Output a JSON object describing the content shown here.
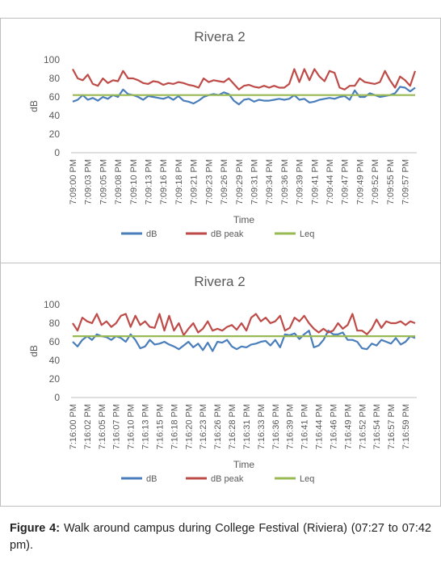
{
  "chart_data": [
    {
      "type": "line",
      "title": "Rivera 2",
      "x_label": "Time",
      "y_label": "dB",
      "categories": [
        "7:09:00 PM",
        null,
        null,
        "7:09:03 PM",
        null,
        null,
        "7:09:05 PM",
        null,
        null,
        "7:09:08 PM",
        null,
        null,
        "7:09:10 PM",
        null,
        null,
        "7:09:13 PM",
        null,
        null,
        "7:09:16 PM",
        null,
        null,
        "7:09:18 PM",
        null,
        null,
        "7:09:21 PM",
        null,
        null,
        "7:09:23 PM",
        null,
        null,
        "7:09:26 PM",
        null,
        null,
        "7:09:29 PM",
        null,
        null,
        "7:09:31 PM",
        null,
        null,
        "7:09:34 PM",
        null,
        null,
        "7:09:36 PM",
        null,
        null,
        "7:09:39 PM",
        null,
        null,
        "7:09:41 PM",
        null,
        null,
        "7:09:44 PM",
        null,
        null,
        "7:09:47 PM",
        null,
        null,
        "7:09:49 PM",
        null,
        null,
        "7:09:52 PM",
        null,
        null,
        "7:09:55 PM",
        null,
        null,
        "7:09:57 PM",
        null,
        null
      ],
      "series": [
        {
          "name": "dB",
          "color": "#4a7ebb",
          "values": [
            55,
            57,
            62,
            57,
            59,
            56,
            60,
            58,
            62,
            60,
            68,
            63,
            62,
            60,
            57,
            61,
            60,
            59,
            58,
            60,
            57,
            61,
            56,
            55,
            53,
            56,
            60,
            62,
            63,
            62,
            65,
            63,
            56,
            52,
            57,
            58,
            55,
            57,
            56,
            56,
            57,
            58,
            57,
            58,
            62,
            57,
            58,
            54,
            55,
            57,
            58,
            59,
            58,
            60,
            61,
            57,
            67,
            60,
            60,
            64,
            62,
            60,
            61,
            62,
            64,
            71,
            70,
            66,
            70
          ]
        },
        {
          "name": "dB peak",
          "color": "#be4b48",
          "values": [
            90,
            80,
            78,
            84,
            74,
            72,
            80,
            75,
            78,
            77,
            88,
            80,
            80,
            78,
            75,
            74,
            77,
            76,
            73,
            75,
            74,
            76,
            75,
            73,
            72,
            70,
            80,
            76,
            78,
            77,
            76,
            80,
            74,
            68,
            72,
            73,
            71,
            70,
            72,
            70,
            72,
            70,
            70,
            74,
            90,
            76,
            90,
            78,
            90,
            82,
            77,
            88,
            86,
            70,
            68,
            72,
            72,
            80,
            76,
            75,
            74,
            76,
            88,
            78,
            70,
            82,
            78,
            72,
            88
          ]
        },
        {
          "name": "Leq",
          "color": "#98b954",
          "values": [
            62,
            62,
            62,
            62,
            62,
            62,
            62,
            62,
            62,
            62,
            62,
            62,
            62,
            62,
            62,
            62,
            62,
            62,
            62,
            62,
            62,
            62,
            62,
            62,
            62,
            62,
            62,
            62,
            62,
            62,
            62,
            62,
            62,
            62,
            62,
            62,
            62,
            62,
            62,
            62,
            62,
            62,
            62,
            62,
            62,
            62,
            62,
            62,
            62,
            62,
            62,
            62,
            62,
            62,
            62,
            62,
            62,
            62,
            62,
            62,
            62,
            62,
            62,
            62,
            62,
            62,
            62,
            62,
            62
          ]
        }
      ],
      "ylim": [
        0,
        100
      ],
      "yticks": [
        0,
        20,
        40,
        60,
        80,
        100
      ],
      "legend": "bottom"
    },
    {
      "type": "line",
      "title": "Rivera 2",
      "x_label": "Time",
      "y_label": "dB",
      "categories": [
        "7:16:00 PM",
        null,
        null,
        "7:16:02 PM",
        null,
        null,
        "7:16:05 PM",
        null,
        null,
        "7:16:07 PM",
        null,
        null,
        "7:16:10 PM",
        null,
        null,
        "7:16:13 PM",
        null,
        null,
        "7:16:15 PM",
        null,
        null,
        "7:16:18 PM",
        null,
        null,
        "7:16:20 PM",
        null,
        null,
        "7:16:23 PM",
        null,
        null,
        "7:16:26 PM",
        null,
        null,
        "7:16:28 PM",
        null,
        null,
        "7:16:31 PM",
        null,
        null,
        "7:16:33 PM",
        null,
        null,
        "7:16:36 PM",
        null,
        null,
        "7:16:39 PM",
        null,
        null,
        "7:16:41 PM",
        null,
        null,
        "7:16:44 PM",
        null,
        null,
        "7:16:46 PM",
        null,
        null,
        "7:16:49 PM",
        null,
        null,
        "7:16:52 PM",
        null,
        null,
        "7:16:54 PM",
        null,
        null,
        "7:16:57 PM",
        null,
        null,
        "7:16:59 PM",
        null,
        null
      ],
      "series": [
        {
          "name": "dB",
          "color": "#4a7ebb",
          "values": [
            60,
            55,
            62,
            66,
            62,
            68,
            66,
            65,
            62,
            66,
            64,
            60,
            68,
            62,
            53,
            55,
            62,
            57,
            58,
            60,
            57,
            55,
            52,
            56,
            60,
            54,
            58,
            51,
            59,
            50,
            60,
            59,
            62,
            55,
            52,
            55,
            54,
            57,
            58,
            60,
            61,
            56,
            62,
            54,
            68,
            67,
            69,
            63,
            68,
            72,
            54,
            56,
            62,
            72,
            68,
            68,
            70,
            62,
            62,
            60,
            53,
            52,
            58,
            56,
            62,
            60,
            58,
            64,
            57,
            60,
            66,
            64
          ]
        },
        {
          "name": "dB peak",
          "color": "#be4b48",
          "values": [
            80,
            72,
            86,
            82,
            80,
            90,
            78,
            82,
            76,
            80,
            88,
            90,
            76,
            88,
            78,
            82,
            76,
            75,
            90,
            72,
            88,
            72,
            80,
            67,
            74,
            80,
            70,
            74,
            82,
            72,
            74,
            72,
            76,
            78,
            73,
            80,
            72,
            86,
            90,
            82,
            86,
            80,
            82,
            88,
            72,
            75,
            86,
            82,
            88,
            80,
            74,
            70,
            74,
            70,
            72,
            80,
            74,
            78,
            90,
            72,
            72,
            68,
            74,
            84,
            75,
            82,
            80,
            80,
            82,
            78,
            82,
            80
          ]
        },
        {
          "name": "Leq",
          "color": "#98b954",
          "values": [
            66,
            66,
            66,
            66,
            66,
            66,
            66,
            66,
            66,
            66,
            66,
            66,
            66,
            66,
            66,
            66,
            66,
            66,
            66,
            66,
            66,
            66,
            66,
            66,
            66,
            66,
            66,
            66,
            66,
            66,
            66,
            66,
            66,
            66,
            66,
            66,
            66,
            66,
            66,
            66,
            66,
            66,
            66,
            66,
            66,
            66,
            66,
            66,
            66,
            66,
            66,
            66,
            66,
            66,
            66,
            66,
            66,
            66,
            66,
            66,
            66,
            66,
            66,
            66,
            66,
            66,
            66,
            66,
            66,
            66,
            66,
            66
          ]
        }
      ],
      "ylim": [
        0,
        100
      ],
      "yticks": [
        0,
        20,
        40,
        60,
        80,
        100
      ],
      "legend": "bottom"
    }
  ],
  "caption": {
    "label": "Figure 4:",
    "text": "Walk around campus during College Festival (Riviera) (07:27 to 07:42 pm)."
  }
}
